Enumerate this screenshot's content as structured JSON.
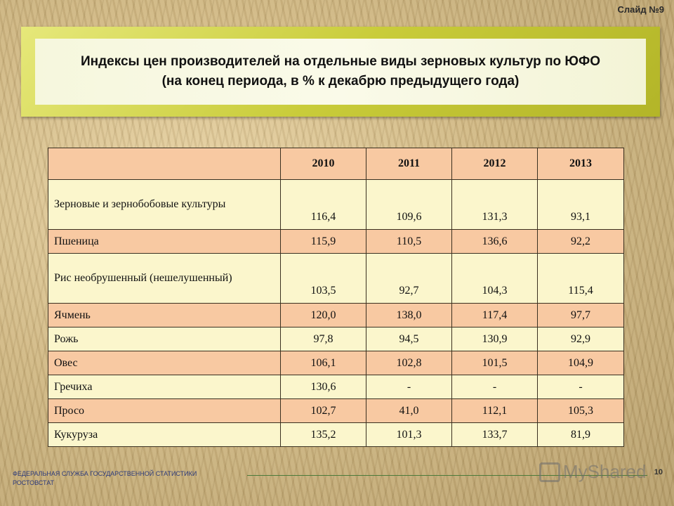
{
  "slide_label": "Слайд №9",
  "title": {
    "line1": "Индексы цен производителей на отдельные виды зерновых культур  по ЮФО",
    "line2": "(на конец периода, в % к декабрю предыдущего года)"
  },
  "table": {
    "headers": [
      "",
      "2010",
      "2011",
      "2012",
      "2013"
    ],
    "rows": [
      {
        "name": "Зерновые и зернобобовые культуры",
        "values": [
          "116,4",
          "109,6",
          "131,3",
          "93,1"
        ]
      },
      {
        "name": "Пшеница",
        "values": [
          "115,9",
          "110,5",
          "136,6",
          "92,2"
        ]
      },
      {
        "name": "Рис необрушенный (нешелушенный)",
        "values": [
          "103,5",
          "92,7",
          "104,3",
          "115,4"
        ]
      },
      {
        "name": "Ячмень",
        "values": [
          "120,0",
          "138,0",
          "117,4",
          "97,7"
        ]
      },
      {
        "name": "Рожь",
        "values": [
          "97,8",
          "94,5",
          "130,9",
          "92,9"
        ]
      },
      {
        "name": "Овес",
        "values": [
          "106,1",
          "102,8",
          "101,5",
          "104,9"
        ]
      },
      {
        "name": "Гречиха",
        "values": [
          "130,6",
          "-",
          "-",
          "-"
        ]
      },
      {
        "name": "Просо",
        "values": [
          "102,7",
          "41,0",
          "112,1",
          "105,3"
        ]
      },
      {
        "name": "Кукуруза",
        "values": [
          "135,2",
          "101,3",
          "133,7",
          "81,9"
        ]
      }
    ]
  },
  "footer": {
    "org_line1": "ФЕДЕРАЛЬНАЯ СЛУЖБА ГОСУДАРСТВЕННОЙ СТАТИСТИКИ",
    "org_line2": "РОСТОВСТАТ",
    "page_number": "10"
  },
  "watermark": {
    "text": "MyShared",
    "icon": "presentation-icon"
  },
  "colors": {
    "header_bg": "#f8c9a2",
    "row_peach": "#f8c9a2",
    "row_cream": "#fbf6cc",
    "frame": "#c9cc3a"
  }
}
